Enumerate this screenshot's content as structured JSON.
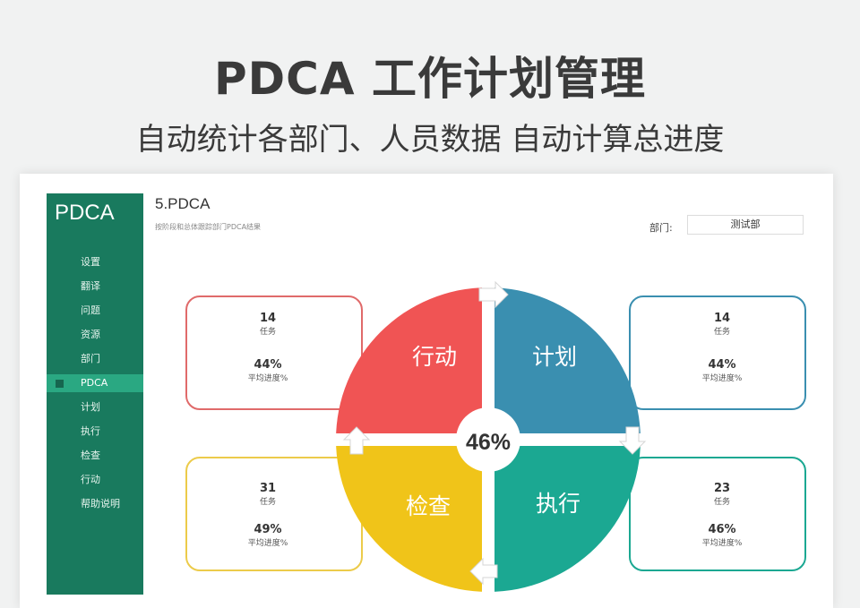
{
  "banner": {
    "title": "PDCA 工作计划管理",
    "subtitle": "自动统计各部门、人员数据 自动计算总进度"
  },
  "sidebar": {
    "title": "PDCA",
    "items": [
      {
        "label": "设置"
      },
      {
        "label": "翻译"
      },
      {
        "label": "问题"
      },
      {
        "label": "资源"
      },
      {
        "label": "部门"
      },
      {
        "label": "PDCA"
      },
      {
        "label": "计划"
      },
      {
        "label": "执行"
      },
      {
        "label": "检查"
      },
      {
        "label": "行动"
      },
      {
        "label": "帮助说明"
      }
    ]
  },
  "content": {
    "title": "5.PDCA",
    "description": "按阶段和总体跟踪部门PDCA结果",
    "dept_label": "部门:",
    "dept_value": "测试部"
  },
  "overall_progress": "46%",
  "quadrants": {
    "act": {
      "label": "行动",
      "color": "#f05454",
      "tasks": "14",
      "tasks_label": "任务",
      "progress": "44%",
      "progress_label": "平均进度%"
    },
    "plan": {
      "label": "计划",
      "color": "#3a8fb0",
      "tasks": "14",
      "tasks_label": "任务",
      "progress": "44%",
      "progress_label": "平均进度%"
    },
    "check": {
      "label": "检查",
      "color": "#f0c419",
      "tasks": "31",
      "tasks_label": "任务",
      "progress": "49%",
      "progress_label": "平均进度%"
    },
    "do": {
      "label": "执行",
      "color": "#1ba892",
      "tasks": "23",
      "tasks_label": "任务",
      "progress": "46%",
      "progress_label": "平均进度%"
    }
  },
  "colors": {
    "sidebar": "#197a5e",
    "sidebar_active": "#2aa882"
  }
}
